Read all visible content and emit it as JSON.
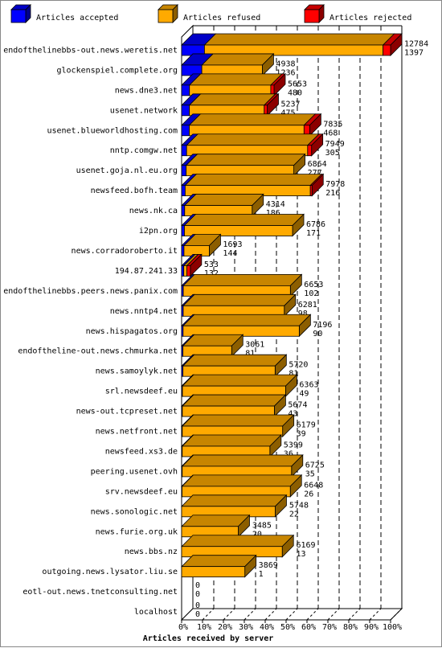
{
  "chart_data": {
    "type": "bar",
    "stacked": true,
    "orientation": "horizontal",
    "projection": "3d",
    "xlabel": "Articles received by server",
    "ticks": [
      "0%",
      "10%",
      "20%",
      "30%",
      "40%",
      "50%",
      "60%",
      "70%",
      "80%",
      "90%",
      "100%"
    ],
    "xlim": [
      0,
      100
    ],
    "legend_position": "top",
    "series": [
      {
        "name": "Articles accepted",
        "color": "#0000ff"
      },
      {
        "name": "Articles refused",
        "color": "#ffaa00"
      },
      {
        "name": "Articles rejected",
        "color": "#ff0000"
      }
    ],
    "categories": [
      "endofthelinebbs-out.news.weretis.net",
      "glockenspiel.complete.org",
      "news.dne3.net",
      "usenet.network",
      "usenet.blueworldhosting.com",
      "nntp.comgw.net",
      "usenet.goja.nl.eu.org",
      "newsfeed.bofh.team",
      "news.nk.ca",
      "i2pn.org",
      "news.corradoroberto.it",
      "194.87.241.33",
      "endofthelinebbs.peers.news.panix.com",
      "news.nntp4.net",
      "news.hispagatos.org",
      "endoftheline-out.news.chmurka.net",
      "news.samoylyk.net",
      "srl.newsdeef.eu",
      "news-out.tcpreset.net",
      "news.netfront.net",
      "newsfeed.xs3.de",
      "peering.usenet.ovh",
      "srv.newsdeef.eu",
      "news.sonologic.net",
      "news.furie.org.uk",
      "news.bbs.nz",
      "outgoing.news.lysator.liu.se",
      "eotl-out.news.tnetconsulting.net",
      "localhost"
    ],
    "totals": [
      12784,
      4938,
      5653,
      5237,
      7835,
      7949,
      6864,
      7978,
      4314,
      6786,
      1693,
      533,
      6653,
      6281,
      7196,
      3061,
      5720,
      6363,
      5674,
      6179,
      5399,
      6725,
      6648,
      5748,
      3485,
      6169,
      3869,
      0,
      0
    ],
    "accepted": [
      1397,
      1236,
      480,
      475,
      468,
      305,
      277,
      216,
      186,
      171,
      144,
      132,
      102,
      98,
      90,
      81,
      81,
      49,
      43,
      39,
      36,
      35,
      26,
      22,
      20,
      13,
      1,
      0,
      0
    ],
    "rejected_percent": [
      3.6,
      0,
      3.5,
      3.5,
      4.4,
      3.0,
      0,
      1.3,
      0,
      0,
      0,
      40.0,
      0,
      0,
      0,
      0,
      0,
      0,
      0,
      0,
      0,
      0,
      0,
      0,
      0,
      0,
      0,
      0,
      0
    ]
  }
}
